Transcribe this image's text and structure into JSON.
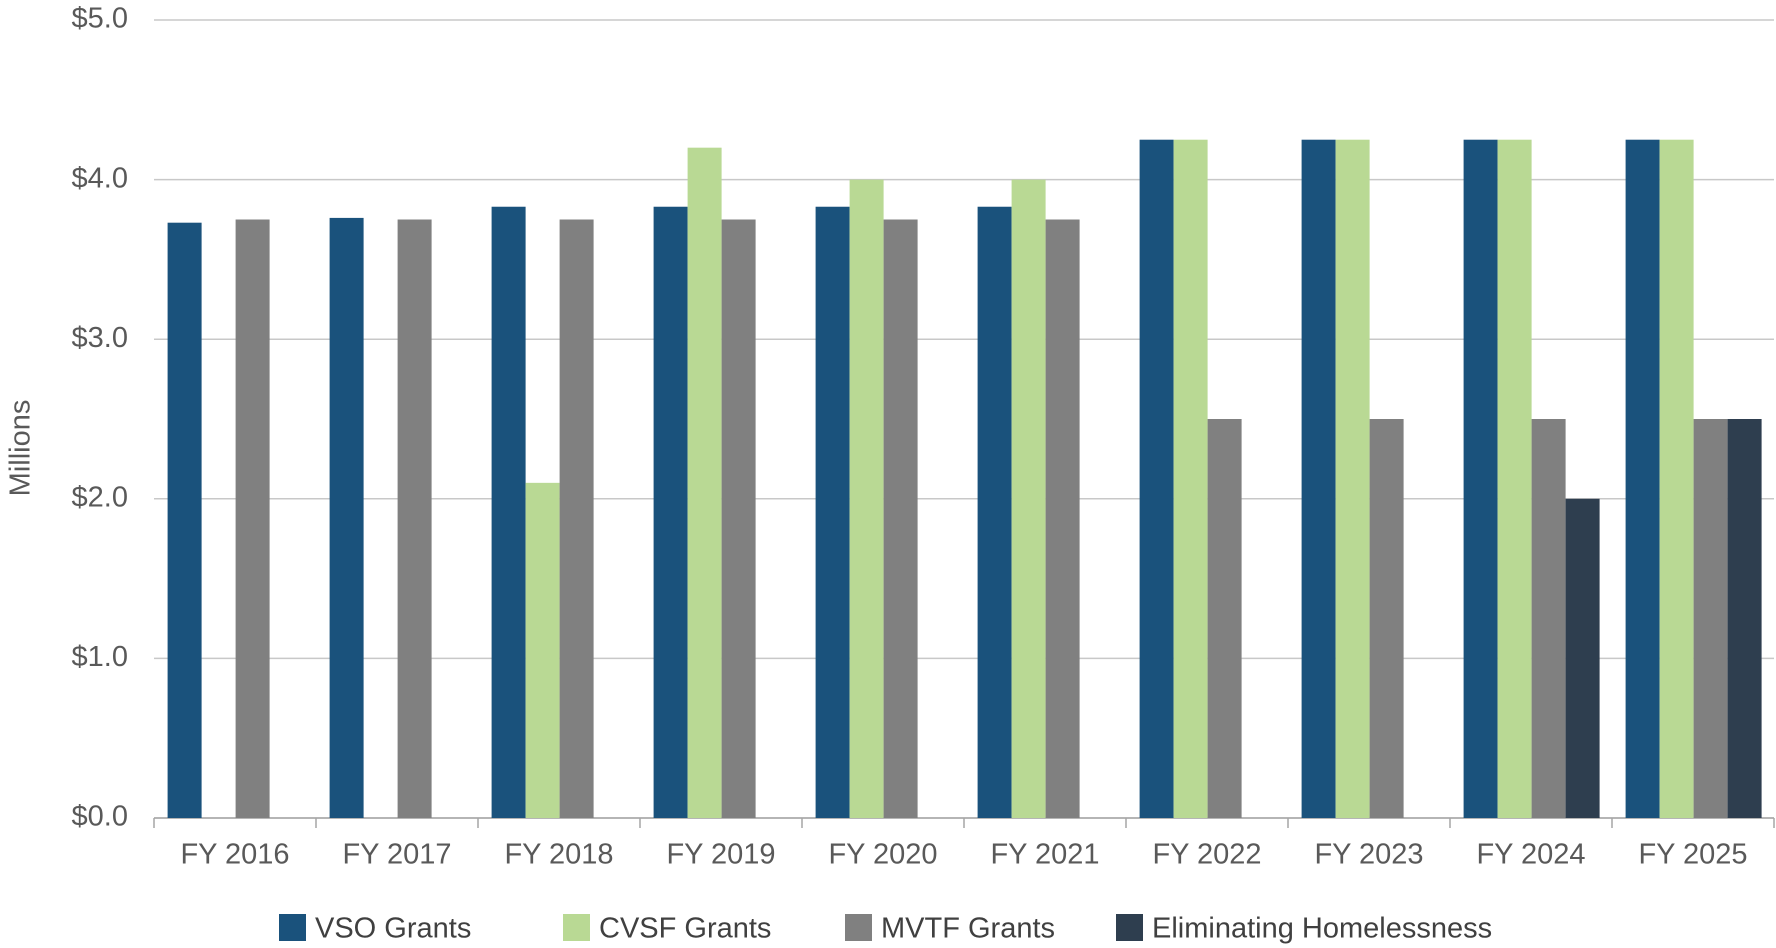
{
  "chart_data": {
    "type": "bar",
    "y_label": "Millions",
    "categories": [
      "FY 2016",
      "FY 2017",
      "FY 2018",
      "FY 2019",
      "FY 2020",
      "FY 2021",
      "FY 2022",
      "FY 2023",
      "FY 2024",
      "FY 2025"
    ],
    "series": [
      {
        "name": "VSO Grants",
        "color": "#1a527c",
        "values": [
          3.73,
          3.76,
          3.83,
          3.83,
          3.83,
          3.83,
          4.25,
          4.25,
          4.25,
          4.25
        ]
      },
      {
        "name": "CVSF Grants",
        "color": "#b9d994",
        "values": [
          null,
          null,
          2.1,
          4.2,
          4.0,
          4.0,
          4.25,
          4.25,
          4.25,
          4.25
        ]
      },
      {
        "name": "MVTF Grants",
        "color": "#808080",
        "values": [
          3.75,
          3.75,
          3.75,
          3.75,
          3.75,
          3.75,
          2.5,
          2.5,
          2.5,
          2.5
        ]
      },
      {
        "name": "Eliminating Homelessness",
        "color": "#2e3e4f",
        "values": [
          null,
          null,
          null,
          null,
          null,
          null,
          null,
          null,
          2.0,
          2.5
        ]
      }
    ],
    "ylim": [
      0,
      5
    ],
    "yticks": [
      {
        "value": 0,
        "label": "$0.0"
      },
      {
        "value": 1,
        "label": "$1.0"
      },
      {
        "value": 2,
        "label": "$2.0"
      },
      {
        "value": 3,
        "label": "$3.0"
      },
      {
        "value": 4,
        "label": "$4.0"
      },
      {
        "value": 5,
        "label": "$5.0"
      }
    ],
    "grid": true
  }
}
